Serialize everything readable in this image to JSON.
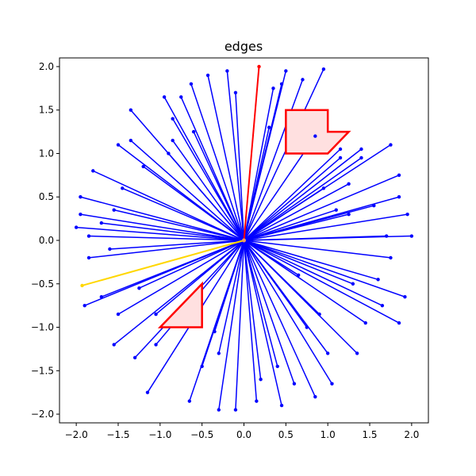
{
  "chart_data": {
    "type": "scatter",
    "title": "edges",
    "xlabel": "",
    "ylabel": "",
    "xlim": [
      -2.2,
      2.2
    ],
    "ylim": [
      -2.1,
      2.1
    ],
    "grid": false,
    "xticks": [
      -2.0,
      -1.5,
      -1.0,
      -0.5,
      0.0,
      0.5,
      1.0,
      1.5,
      2.0
    ],
    "yticks": [
      -2.0,
      -1.5,
      -1.0,
      -0.5,
      0.0,
      0.5,
      1.0,
      1.5,
      2.0
    ],
    "xtick_labels": [
      "−2.0",
      "−1.5",
      "−1.0",
      "−0.5",
      "0.0",
      "0.5",
      "1.0",
      "1.5",
      "2.0"
    ],
    "ytick_labels": [
      "−2.0",
      "−1.5",
      "−1.0",
      "−0.5",
      "0.0",
      "0.5",
      "1.0",
      "1.5",
      "2.0"
    ],
    "center": [
      0.0,
      0.0
    ],
    "edge_color": "#0000ff",
    "highlight_edges": [
      {
        "from": [
          0.0,
          0.0
        ],
        "to": [
          0.18,
          2.0
        ],
        "color": "#ff0000"
      },
      {
        "from": [
          0.0,
          0.0
        ],
        "to": [
          -1.93,
          -0.52
        ],
        "color": "#ffd700"
      }
    ],
    "polygons": [
      {
        "points": [
          [
            0.5,
            1.5
          ],
          [
            1.0,
            1.5
          ],
          [
            1.0,
            1.25
          ],
          [
            1.25,
            1.25
          ],
          [
            1.0,
            1.0
          ],
          [
            0.5,
            1.0
          ]
        ],
        "stroke": "#ff0000",
        "fill": "#ffe0e0"
      },
      {
        "points": [
          [
            -0.5,
            -0.5
          ],
          [
            -0.5,
            -1.0
          ],
          [
            -1.0,
            -1.0
          ]
        ],
        "stroke": "#ff0000",
        "fill": "#ffe0e0"
      }
    ],
    "endpoints": [
      [
        0.5,
        1.95
      ],
      [
        0.95,
        1.97
      ],
      [
        -0.63,
        1.8
      ],
      [
        -0.43,
        1.9
      ],
      [
        -0.2,
        1.95
      ],
      [
        0.45,
        1.8
      ],
      [
        -0.95,
        1.65
      ],
      [
        -1.35,
        1.5
      ],
      [
        -1.5,
        1.1
      ],
      [
        -0.85,
        1.15
      ],
      [
        -1.8,
        0.8
      ],
      [
        -1.95,
        0.5
      ],
      [
        -1.95,
        0.3
      ],
      [
        -2.0,
        0.15
      ],
      [
        -1.85,
        -0.2
      ],
      [
        -1.9,
        -0.75
      ],
      [
        -1.7,
        -0.65
      ],
      [
        -1.5,
        -0.85
      ],
      [
        -1.55,
        -1.2
      ],
      [
        -1.3,
        -1.35
      ],
      [
        -1.15,
        -1.75
      ],
      [
        -0.65,
        -1.85
      ],
      [
        -0.3,
        -1.95
      ],
      [
        -0.1,
        -1.95
      ],
      [
        0.15,
        -1.85
      ],
      [
        0.4,
        -1.45
      ],
      [
        0.6,
        -1.65
      ],
      [
        0.85,
        -1.8
      ],
      [
        1.05,
        -1.65
      ],
      [
        1.35,
        -1.3
      ],
      [
        1.85,
        -0.95
      ],
      [
        1.92,
        -0.65
      ],
      [
        1.6,
        -0.45
      ],
      [
        1.75,
        -0.2
      ],
      [
        2.0,
        0.05
      ],
      [
        1.95,
        0.3
      ],
      [
        1.85,
        0.5
      ],
      [
        1.85,
        0.75
      ],
      [
        1.75,
        1.1
      ],
      [
        1.4,
        1.05
      ],
      [
        1.25,
        0.65
      ],
      [
        1.15,
        0.95
      ],
      [
        0.95,
        0.6
      ],
      [
        1.3,
        -0.5
      ],
      [
        1.45,
        -0.95
      ],
      [
        0.75,
        -1.0
      ],
      [
        -1.2,
        0.85
      ],
      [
        -1.45,
        0.6
      ],
      [
        -1.05,
        -1.2
      ],
      [
        -0.85,
        1.4
      ],
      [
        -1.7,
        0.2
      ],
      [
        0.7,
        1.85
      ],
      [
        1.25,
        0.3
      ],
      [
        -0.75,
        1.65
      ],
      [
        0.35,
        1.75
      ],
      [
        1.55,
        0.4
      ],
      [
        -1.6,
        -0.1
      ],
      [
        0.2,
        -1.6
      ],
      [
        -0.5,
        -1.45
      ],
      [
        1.65,
        -0.75
      ],
      [
        1.0,
        -1.3
      ],
      [
        -1.25,
        -0.55
      ],
      [
        -0.1,
        1.7
      ],
      [
        0.85,
        1.2
      ],
      [
        -0.3,
        -1.3
      ],
      [
        1.4,
        0.95
      ],
      [
        -1.85,
        0.05
      ],
      [
        0.45,
        -1.9
      ],
      [
        -0.9,
        1.0
      ],
      [
        1.7,
        0.05
      ],
      [
        -1.35,
        1.15
      ],
      [
        -0.6,
        1.25
      ],
      [
        1.1,
        0.35
      ],
      [
        -1.05,
        -0.85
      ],
      [
        0.65,
        -0.4
      ],
      [
        1.15,
        1.05
      ],
      [
        -0.35,
        -1.05
      ],
      [
        0.9,
        -0.85
      ],
      [
        -1.55,
        0.35
      ],
      [
        0.3,
        1.3
      ]
    ]
  }
}
